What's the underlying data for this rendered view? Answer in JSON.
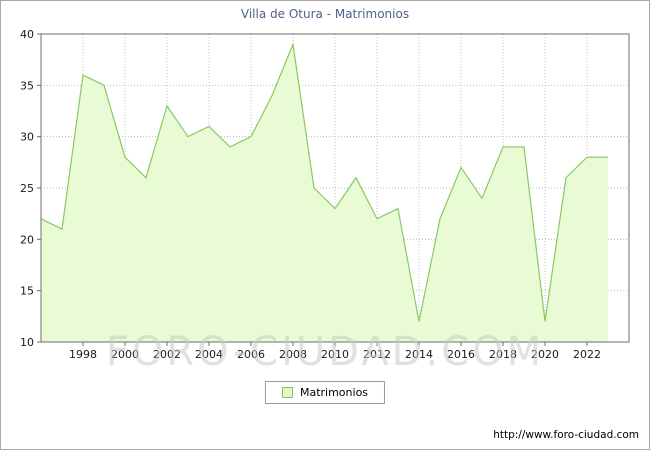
{
  "title": "Villa de Otura - Matrimonios",
  "legend": {
    "label": "Matrimonios"
  },
  "watermark": "FORO-CIUDAD.COM",
  "footer": {
    "url": "http://www.foro-ciudad.com"
  },
  "chart_data": {
    "type": "area",
    "title": "Villa de Otura - Matrimonios",
    "series_name": "Matrimonios",
    "x": [
      1996,
      1997,
      1998,
      1999,
      2000,
      2001,
      2002,
      2003,
      2004,
      2005,
      2006,
      2007,
      2008,
      2009,
      2010,
      2011,
      2012,
      2013,
      2014,
      2015,
      2016,
      2017,
      2018,
      2019,
      2020,
      2021,
      2022,
      2023
    ],
    "values": [
      22,
      21,
      36,
      35,
      28,
      26,
      33,
      30,
      31,
      29,
      30,
      34,
      39,
      25,
      23,
      26,
      22,
      23,
      12,
      22,
      27,
      24,
      29,
      29,
      12,
      26,
      28,
      28
    ],
    "ylim": [
      10,
      40
    ],
    "yticks": [
      10,
      15,
      20,
      25,
      30,
      35,
      40
    ],
    "xticks": [
      1998,
      2000,
      2002,
      2004,
      2006,
      2008,
      2010,
      2012,
      2014,
      2016,
      2018,
      2020,
      2022
    ],
    "grid": true,
    "legend_position": "bottom",
    "colors": {
      "fill": "#e9fbd4",
      "line": "#8cc863",
      "grid": "#bcbcbc",
      "axis": "#6e6e6e",
      "title": "#51618c",
      "text": "#1a1a1a"
    }
  }
}
